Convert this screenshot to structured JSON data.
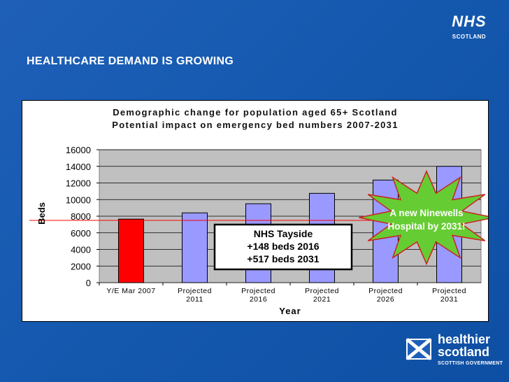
{
  "header": {
    "title": "HEALTHCARE DEMAND IS GROWING",
    "logo_top": "NHS",
    "logo_sub": "SCOTLAND"
  },
  "footer_logo": {
    "line1": "healthier",
    "line2": "scotland",
    "line3": "SCOTTISH GOVERNMENT"
  },
  "colors": {
    "background": "#1656ad",
    "bar_2007": "#ff0000",
    "bar_projected": "#9999ff",
    "plot_bg": "#c0c0c0",
    "ref_line": "#ff0000",
    "starburst": "#66cc33"
  },
  "chart_data": {
    "type": "bar",
    "title": "Demographic change for population aged 65+ Scotland",
    "subtitle": "Potential impact on emergency bed numbers 2007-2031",
    "xlabel": "Year",
    "ylabel": "Beds",
    "ylim": [
      0,
      16000
    ],
    "yticks": [
      "16000",
      "14000",
      "12000",
      "10000",
      "8000",
      "6000",
      "4000",
      "2000",
      "0"
    ],
    "categories": [
      [
        "Y/E Mar 2007",
        ""
      ],
      [
        "Projected",
        "2011"
      ],
      [
        "Projected",
        "2016"
      ],
      [
        "Projected",
        "2021"
      ],
      [
        "Projected",
        "2026"
      ],
      [
        "Projected",
        "2031"
      ]
    ],
    "values": [
      7650,
      8400,
      9500,
      10750,
      12350,
      14000
    ],
    "reference_line": 7500,
    "annotations": {
      "tayside": [
        "NHS Tayside",
        "+148 beds 2016",
        "+517 beds 2031"
      ],
      "starburst": [
        "A new Ninewells",
        "Hospital by 2031!"
      ]
    }
  }
}
